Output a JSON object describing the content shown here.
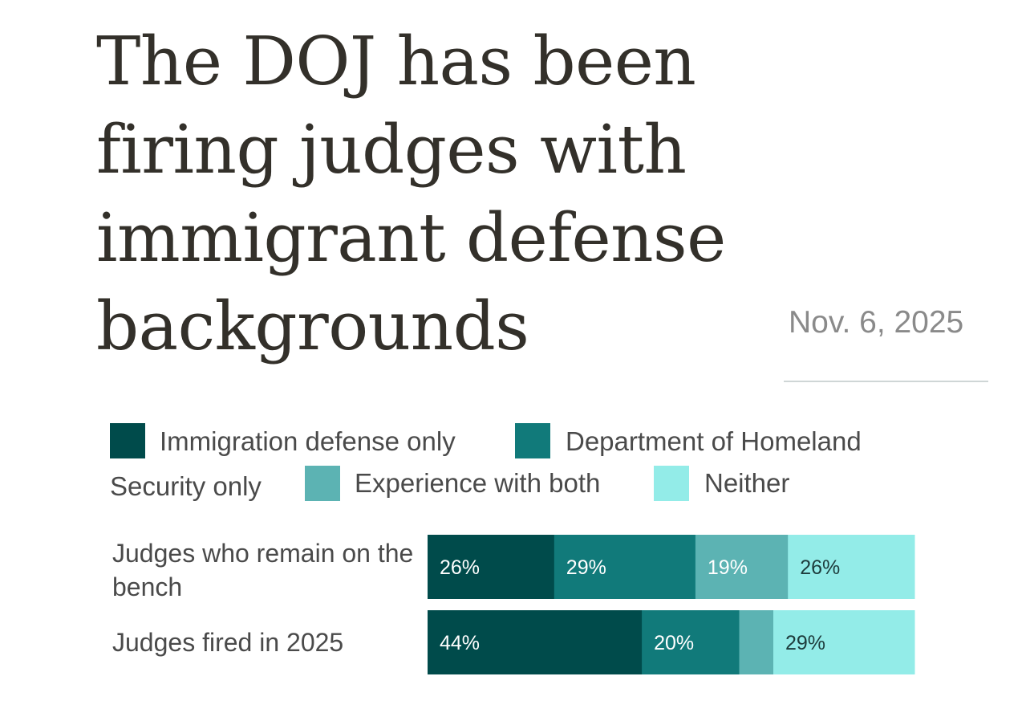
{
  "header": {
    "title": "The DOJ has been firing judges with immigrant defense backgrounds",
    "date": "Nov. 6, 2025"
  },
  "legend": {
    "items": [
      {
        "label": "Immigration defense only",
        "color": "#004b4b"
      },
      {
        "label": "Department of Homeland Security only",
        "label_part1": "Department of Homeland",
        "label_part2": "Security only",
        "color": "#117a7a"
      },
      {
        "label": "Experience with both",
        "color": "#5cb3b3"
      },
      {
        "label": "Neither",
        "color": "#93ece8"
      }
    ]
  },
  "chart_data": {
    "type": "bar",
    "orientation": "horizontal",
    "stacked": true,
    "percent": true,
    "categories": [
      "Judges who remain on the bench",
      "Judges fired in 2025"
    ],
    "series": [
      {
        "name": "Immigration defense only",
        "values": [
          26,
          44
        ],
        "color": "#004b4b"
      },
      {
        "name": "Department of Homeland Security only",
        "values": [
          29,
          20
        ],
        "color": "#117a7a"
      },
      {
        "name": "Experience with both",
        "values": [
          19,
          7
        ],
        "color": "#5cb3b3"
      },
      {
        "name": "Neither",
        "values": [
          26,
          29
        ],
        "color": "#93ece8"
      }
    ],
    "data_labels": [
      [
        "26%",
        "29%",
        "19%",
        "26%"
      ],
      [
        "44%",
        "20%",
        "",
        "29%"
      ]
    ],
    "label_colors": [
      "#ffffff",
      "#ffffff",
      "#ffffff",
      "#1d3b3b"
    ],
    "xlim": [
      0,
      100
    ],
    "grid": false,
    "legend_position": "top"
  }
}
